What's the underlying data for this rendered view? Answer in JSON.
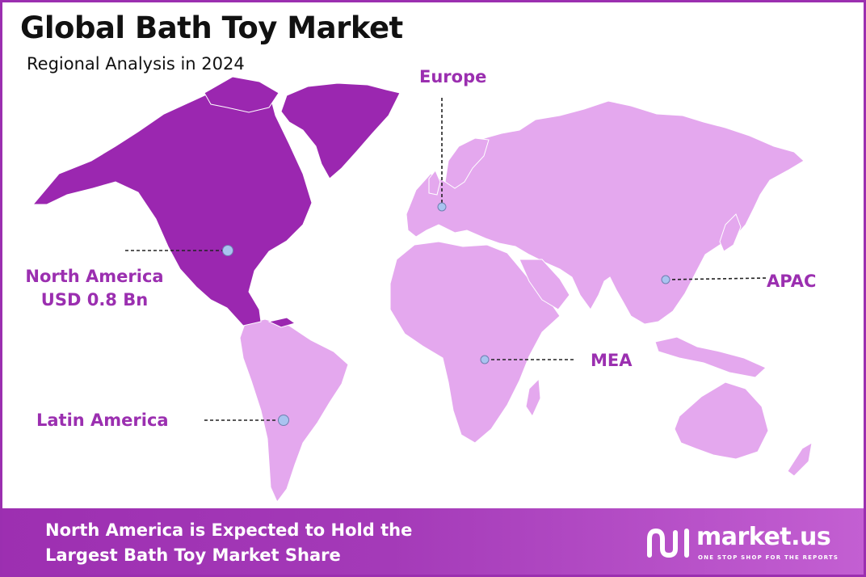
{
  "title": "Global Bath Toy Market",
  "subtitle": "Regional Analysis in 2024",
  "colors": {
    "highlight_region": "#9b27b0",
    "other_regions": "#e4a8ee",
    "label": "#9b2fb0",
    "marker": "#a9c3f0",
    "footer": "#a43ab8"
  },
  "regions": {
    "north_america": {
      "name": "North America",
      "value": "USD 0.8 Bn"
    },
    "europe": {
      "name": "Europe"
    },
    "apac": {
      "name": "APAC"
    },
    "mea": {
      "name": "MEA"
    },
    "latin_america": {
      "name": "Latin America"
    }
  },
  "footer": {
    "line1": "North America is Expected to Hold the",
    "line2": "Largest Bath Toy Market Share",
    "brand_name": "market.us",
    "brand_tagline": "ONE STOP SHOP FOR THE REPORTS",
    "brand_icon": "market-us-logo-icon"
  }
}
